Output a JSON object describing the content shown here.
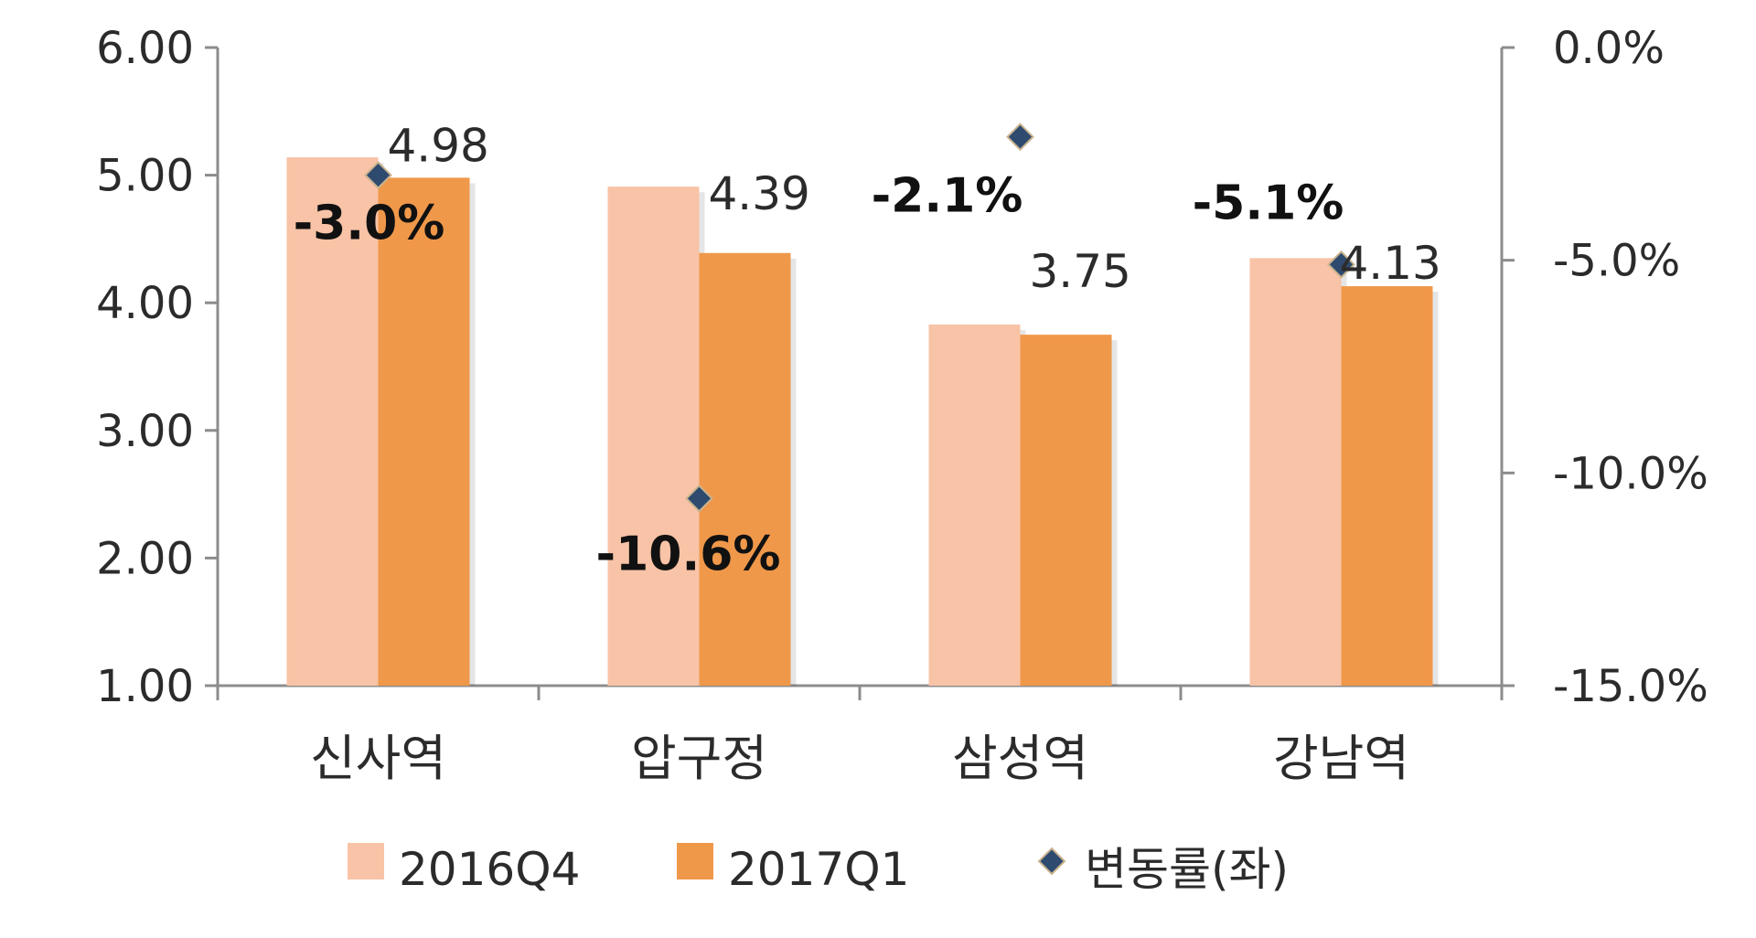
{
  "chart_data": {
    "type": "bar",
    "categories": [
      "신사역",
      "압구정",
      "삼성역",
      "강남역"
    ],
    "series": [
      {
        "name": "2016Q4",
        "kind": "bar",
        "axis": "left",
        "color": "#F8C3A6",
        "values": [
          5.14,
          4.91,
          3.83,
          4.35
        ]
      },
      {
        "name": "2017Q1",
        "kind": "bar",
        "axis": "left",
        "color": "#F0984A",
        "values": [
          4.98,
          4.39,
          3.75,
          4.13
        ],
        "labels": [
          "4.98",
          "4.39",
          "3.75",
          "4.13"
        ]
      },
      {
        "name": "변동률(좌)",
        "kind": "marker",
        "axis": "right",
        "color": "#2E4A6E",
        "values": [
          -3.0,
          -10.6,
          -2.1,
          -5.1
        ],
        "labels": [
          "-3.0%",
          "-10.6%",
          "-2.1%",
          "-5.1%"
        ]
      }
    ],
    "y_left": {
      "ylim": [
        1.0,
        6.0
      ],
      "ticks": [
        "6.00",
        "5.00",
        "4.00",
        "3.00",
        "2.00",
        "1.00"
      ]
    },
    "y_right": {
      "ylim": [
        -15.0,
        0.0
      ],
      "ticks": [
        "0.0%",
        "-5.0%",
        "-10.0%",
        "-15.0%"
      ]
    },
    "legend_position": "bottom",
    "grid": false
  }
}
